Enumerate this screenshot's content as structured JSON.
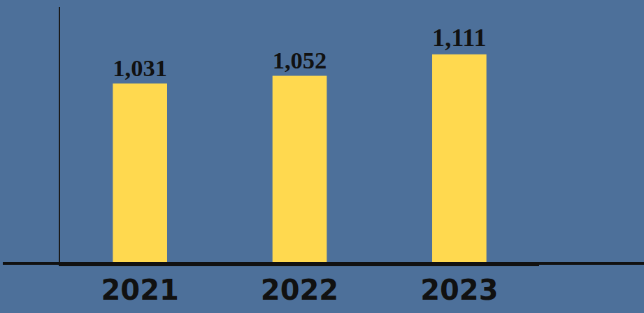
{
  "chart_data": {
    "type": "bar",
    "categories": [
      "2021",
      "2022",
      "2023"
    ],
    "values": [
      1031,
      1052,
      1111
    ],
    "value_labels": [
      "1,031",
      "1,052",
      "1,111"
    ],
    "color": "#ffd94f",
    "ylim": [
      540,
      1240
    ],
    "yticks": [],
    "grid": false,
    "data_labels": true,
    "tick_labels": "x"
  }
}
